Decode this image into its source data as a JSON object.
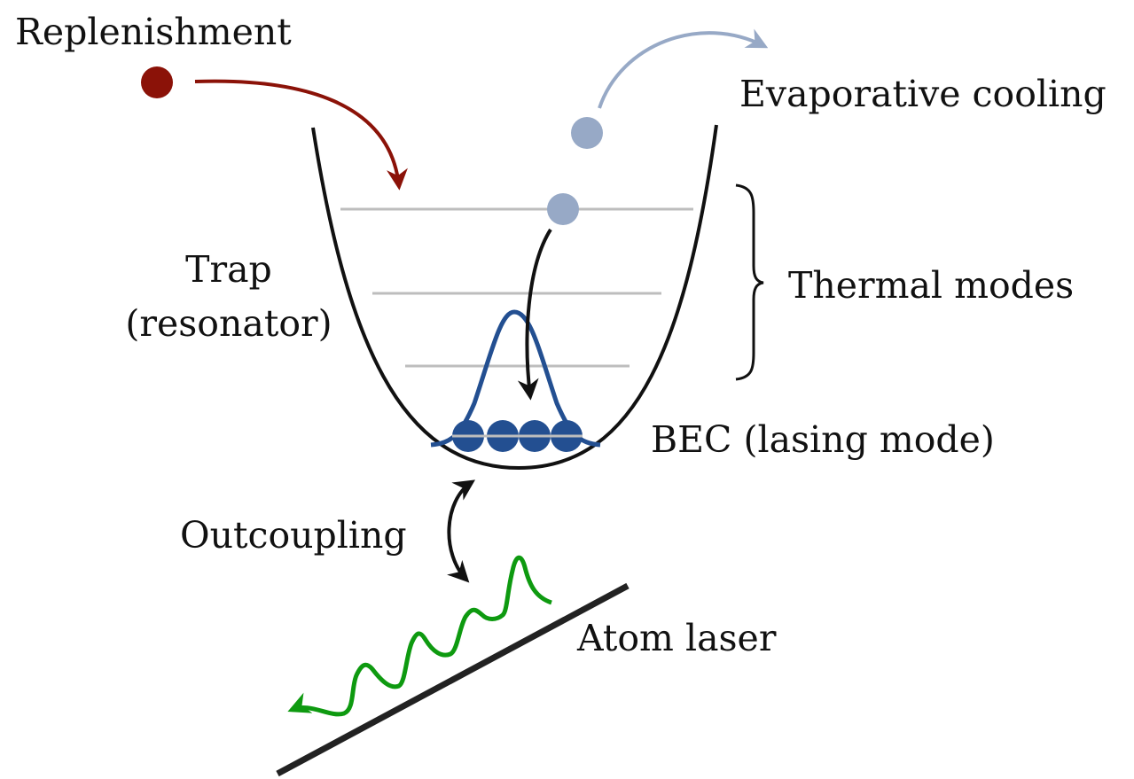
{
  "labels": {
    "replenishment": "Replenishment",
    "evaporative_cooling": "Evaporative cooling",
    "trap_line1": "Trap",
    "trap_line2": "(resonator)",
    "thermal_modes": "Thermal modes",
    "bec": "BEC (lasing mode)",
    "outcoupling": "Outcoupling",
    "atom_laser": "Atom laser"
  },
  "colors": {
    "replenishment_atom": "#8b1208",
    "thermal_atom": "#97a9c6",
    "bec_blue": "#234f91",
    "laser_green": "#0e9a10",
    "level_grey": "#bdbdbd",
    "ink": "#111111"
  }
}
